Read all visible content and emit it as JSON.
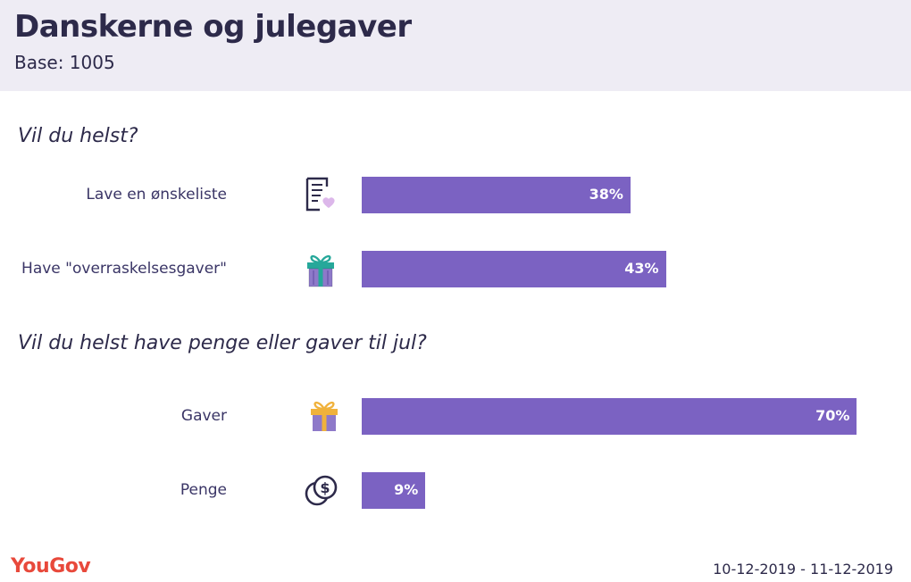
{
  "header": {
    "title": "Danskerne og julegaver",
    "subtitle": "Base: 1005"
  },
  "chart_data": [
    {
      "type": "bar",
      "orientation": "horizontal",
      "title": "Vil du helst?",
      "categories": [
        "Lave en ønskeliste",
        "Have \"overraskelsesgaver\""
      ],
      "values": [
        38,
        43
      ],
      "value_labels": [
        "38%",
        "43%"
      ],
      "icons": [
        "wishlist-icon",
        "gift-box-icon"
      ],
      "xlim": [
        0,
        100
      ],
      "unit": "%",
      "bar_color": "#7b62c2"
    },
    {
      "type": "bar",
      "orientation": "horizontal",
      "title": "Vil du helst have penge eller gaver til jul?",
      "categories": [
        "Gaver",
        "Penge"
      ],
      "values": [
        70,
        9
      ],
      "value_labels": [
        "70%",
        "9%"
      ],
      "icons": [
        "gift-icon",
        "coins-icon"
      ],
      "xlim": [
        0,
        100
      ],
      "unit": "%",
      "bar_color": "#7b62c2"
    }
  ],
  "footer": {
    "logo": "YouGov",
    "date_range": "10-12-2019 - 11-12-2019"
  },
  "colors": {
    "header_bg": "#eeecf4",
    "text": "#2d2a4a",
    "bar": "#7b62c2",
    "logo": "#e8493b"
  }
}
